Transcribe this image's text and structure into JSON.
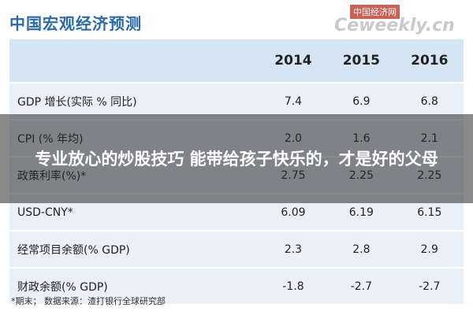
{
  "header": {
    "title": "中国宏观经济预测",
    "watermark": "中国经济网",
    "watermark_site": "Ceweekly.cn"
  },
  "table": {
    "columns": [
      "2014",
      "2015",
      "2016"
    ],
    "rows": [
      [
        "GDP 增长(实际 % 同比)",
        "7.4",
        "6.9",
        "6.8"
      ],
      [
        "CPI (% 年均)",
        "2.0",
        "1.6",
        "2.1"
      ],
      [
        "政策利率(%)*",
        "2.75",
        "2.25",
        "2.25"
      ],
      [
        "USD-CNY*",
        "6.09",
        "6.19",
        "6.15"
      ],
      [
        "经常项目余额(% GDP)",
        "2.3",
        "2.8",
        "2.9"
      ],
      [
        "财政余额(% GDP)",
        "-1.8",
        "-2.7",
        "-2.7"
      ]
    ]
  },
  "footnote": "*期末；   数据来源：渣打银行全球研究部",
  "overlay": "专业放心的炒股技巧 能带给孩子快乐的，才是好的父母"
}
